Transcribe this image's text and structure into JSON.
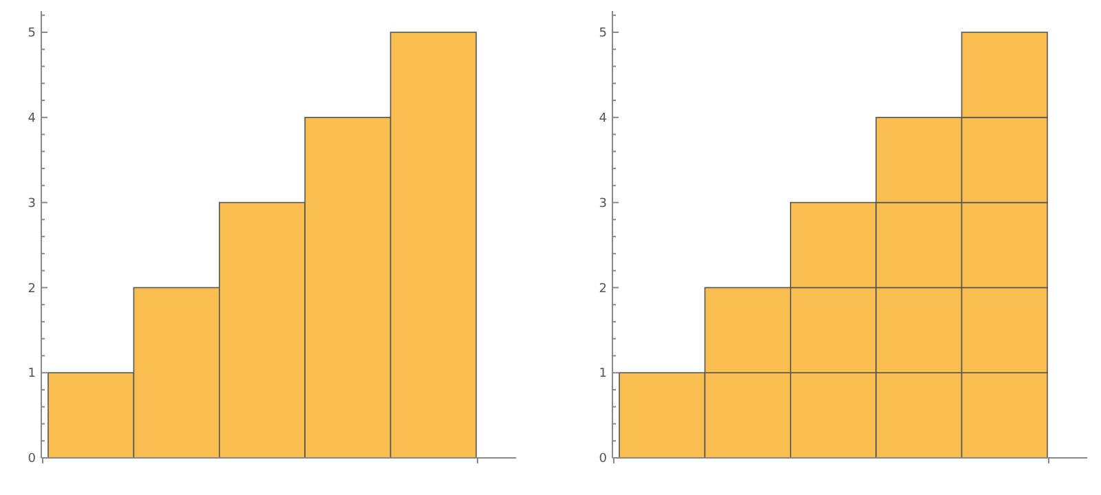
{
  "chart_data": [
    {
      "type": "bar",
      "categories": [
        null,
        null,
        null,
        null,
        null
      ],
      "values": [
        1,
        2,
        3,
        4,
        5
      ],
      "color": "#f9be50",
      "ylim": [
        0,
        5.25
      ],
      "yticks": [
        0,
        {
          "value": 0.2,
          "label": null
        },
        {
          "value": 0.4,
          "label": null
        },
        {
          "value": 0.6,
          "label": null
        },
        {
          "value": 0.8,
          "label": null
        },
        1,
        {
          "value": 1.2,
          "label": null
        },
        {
          "value": 1.4,
          "label": null
        },
        {
          "value": 1.6,
          "label": null
        },
        {
          "value": 1.8,
          "label": null
        },
        2,
        {
          "value": 2.2,
          "label": null
        },
        {
          "value": 2.4,
          "label": null
        },
        {
          "value": 2.6,
          "label": null
        },
        {
          "value": 2.8,
          "label": null
        },
        3,
        {
          "value": 3.2,
          "label": null
        },
        {
          "value": 3.4,
          "label": null
        },
        {
          "value": 3.6,
          "label": null
        },
        {
          "value": 3.8,
          "label": null
        },
        4,
        {
          "value": 4.2,
          "label": null
        },
        {
          "value": 4.4,
          "label": null
        },
        {
          "value": 4.6,
          "label": null
        },
        {
          "value": 4.8,
          "label": null
        },
        5,
        {
          "value": 5.2,
          "label": null
        }
      ],
      "grid": false
    },
    {
      "type": "bar",
      "stacked": true,
      "categories": [
        null,
        null,
        null,
        null,
        null
      ],
      "series": [
        {
          "color": "#f9be50",
          "values": [
            1,
            1,
            1,
            1,
            1
          ]
        },
        {
          "color": "#f9be50",
          "values": [
            null,
            1,
            1,
            1,
            1
          ]
        },
        {
          "color": "#f9be50",
          "values": [
            null,
            null,
            1,
            1,
            1
          ]
        },
        {
          "color": "#f9be50",
          "values": [
            null,
            null,
            null,
            1,
            1
          ]
        },
        {
          "color": "#f9be50",
          "values": [
            null,
            null,
            null,
            null,
            1
          ]
        }
      ],
      "ylim": [
        0,
        5.25
      ],
      "yticks": [
        0,
        {
          "value": 0.2,
          "label": null
        },
        {
          "value": 0.4,
          "label": null
        },
        {
          "value": 0.6,
          "label": null
        },
        {
          "value": 0.8,
          "label": null
        },
        1,
        {
          "value": 1.2,
          "label": null
        },
        {
          "value": 1.4,
          "label": null
        },
        {
          "value": 1.6,
          "label": null
        },
        {
          "value": 1.8,
          "label": null
        },
        2,
        {
          "value": 2.2,
          "label": null
        },
        {
          "value": 2.4,
          "label": null
        },
        {
          "value": 2.6,
          "label": null
        },
        {
          "value": 2.8,
          "label": null
        },
        3,
        {
          "value": 3.2,
          "label": null
        },
        {
          "value": 3.4,
          "label": null
        },
        {
          "value": 3.6,
          "label": null
        },
        {
          "value": 3.8,
          "label": null
        },
        4,
        {
          "value": 4.2,
          "label": null
        },
        {
          "value": 4.4,
          "label": null
        },
        {
          "value": 4.6,
          "label": null
        },
        {
          "value": 4.8,
          "label": null
        },
        5,
        {
          "value": 5.2,
          "label": null
        }
      ],
      "grid": false
    }
  ]
}
